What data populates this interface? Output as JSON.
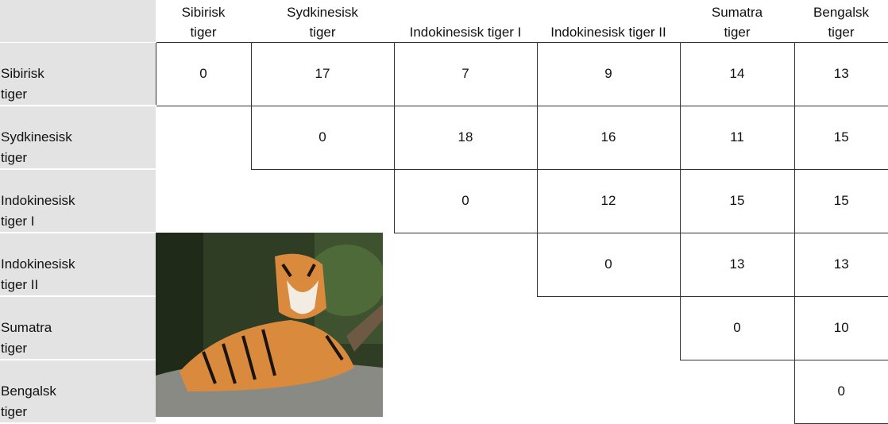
{
  "columns": [
    "Sibirisk tiger",
    "Sydkinesisk tiger",
    "Indokinesisk tiger I",
    "Indokinesisk tiger II",
    "Sumatra tiger",
    "Bengalsk tiger"
  ],
  "rows": [
    {
      "label": "Sibirisk tiger",
      "values": [
        0,
        17,
        7,
        9,
        14,
        13
      ]
    },
    {
      "label": "Sydkinesisk tiger",
      "values": [
        0,
        18,
        16,
        11,
        15
      ]
    },
    {
      "label": "Indokinesisk tiger I",
      "values": [
        0,
        12,
        15,
        15
      ]
    },
    {
      "label": "Indokinesisk tiger II",
      "values": [
        0,
        13,
        13
      ]
    },
    {
      "label": "Sumatra tiger",
      "values": [
        0,
        10
      ]
    },
    {
      "label": "Bengalsk tiger",
      "values": [
        0
      ]
    }
  ]
}
